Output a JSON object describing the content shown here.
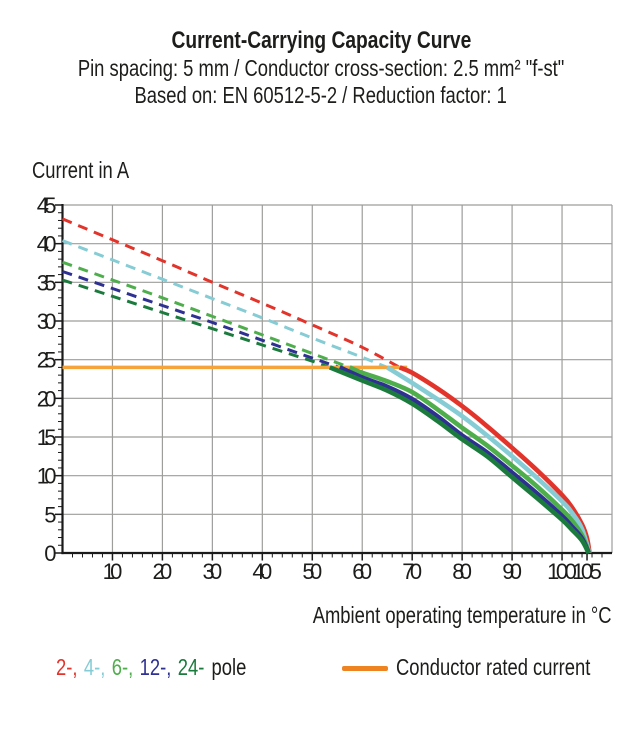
{
  "header": {
    "title": "Current-Carrying Capacity Curve",
    "subtitle1": "Pin spacing: 5 mm / Conductor cross-section: 2.5 mm² \"f-st\"",
    "subtitle2": "Based on: EN 60512-5-2 / Reduction factor: 1"
  },
  "legend": {
    "poles": [
      {
        "text": "2-,",
        "color": "#e2342a"
      },
      {
        "text": "4-,",
        "color": "#85ccd5"
      },
      {
        "text": "6-,",
        "color": "#4fae4c"
      },
      {
        "text": "12-,",
        "color": "#2e3191"
      },
      {
        "text": "24-",
        "color": "#1b7b3d"
      }
    ],
    "suffix": "pole",
    "rated_label": "Conductor rated current",
    "rated_swatch_color": "#ee8322"
  },
  "chart_data": {
    "type": "line",
    "title": "Current-Carrying Capacity Curve",
    "xlabel": "Ambient operating temperature in °C",
    "ylabel": "Current in A",
    "xlim": [
      0,
      110
    ],
    "ylim": [
      0,
      45
    ],
    "grid": true,
    "legend_position": "bottom",
    "x_major_ticks": [
      10,
      20,
      30,
      40,
      50,
      60,
      70,
      80,
      90,
      100,
      105
    ],
    "x_minor_step": 2,
    "y_major_ticks": [
      0,
      5,
      10,
      15,
      20,
      25,
      30,
      35,
      40,
      45
    ],
    "y_minor_step": 1,
    "colors": {
      "grid": "#9d9d9c",
      "axis": "#1a1a1a",
      "text": "#1d1d1b"
    },
    "conductor_rated_current": {
      "label": "Conductor rated current",
      "value": 24,
      "x_start": 0,
      "x_end": 69,
      "color": "#f5a43c"
    },
    "note": "Curves are dashed above the conductor rated current (24 A) and solid below it; all poles derate to 0 A at 105 °C",
    "series": [
      {
        "name": "2-pole",
        "color": "#e2342a",
        "style_above_rated": "dashed",
        "style_below_rated": "solid",
        "dashed": [
          [
            0,
            43.2
          ],
          [
            10,
            40.5
          ],
          [
            20,
            37.8
          ],
          [
            30,
            35.0
          ],
          [
            40,
            32.3
          ],
          [
            50,
            29.5
          ],
          [
            60,
            26.6
          ],
          [
            67.5,
            24
          ]
        ],
        "solid": [
          [
            67.5,
            24
          ],
          [
            70,
            23.3
          ],
          [
            75,
            21.3
          ],
          [
            80,
            19.0
          ],
          [
            85,
            16.4
          ],
          [
            90,
            13.6
          ],
          [
            95,
            10.7
          ],
          [
            100,
            7.5
          ],
          [
            102,
            5.9
          ],
          [
            104,
            3.7
          ],
          [
            105,
            1.9
          ],
          [
            105.5,
            0
          ]
        ]
      },
      {
        "name": "4-pole",
        "color": "#85ccd5",
        "style_above_rated": "dashed",
        "style_below_rated": "solid",
        "dashed": [
          [
            0,
            40.4
          ],
          [
            10,
            37.9
          ],
          [
            20,
            35.4
          ],
          [
            30,
            32.9
          ],
          [
            40,
            30.4
          ],
          [
            50,
            27.8
          ],
          [
            60,
            25.3
          ],
          [
            65,
            24
          ]
        ],
        "solid": [
          [
            65,
            24
          ],
          [
            70,
            22.0
          ],
          [
            75,
            19.9
          ],
          [
            80,
            17.7
          ],
          [
            85,
            15.2
          ],
          [
            90,
            12.5
          ],
          [
            95,
            9.7
          ],
          [
            100,
            6.7
          ],
          [
            102,
            5.2
          ],
          [
            104,
            3.1
          ],
          [
            105.45,
            0
          ]
        ]
      },
      {
        "name": "6-pole",
        "color": "#4fae4c",
        "style_above_rated": "dashed",
        "style_below_rated": "solid",
        "dashed": [
          [
            0,
            37.6
          ],
          [
            10,
            35.3
          ],
          [
            20,
            33.0
          ],
          [
            30,
            30.6
          ],
          [
            40,
            28.2
          ],
          [
            50,
            25.8
          ],
          [
            57.5,
            24
          ]
        ],
        "solid": [
          [
            57.5,
            24
          ],
          [
            60,
            23.3
          ],
          [
            65,
            22.2
          ],
          [
            70,
            20.8
          ],
          [
            75,
            18.6
          ],
          [
            80,
            16.2
          ],
          [
            85,
            13.9
          ],
          [
            90,
            11.3
          ],
          [
            95,
            8.6
          ],
          [
            100,
            5.6
          ],
          [
            102,
            4.2
          ],
          [
            104,
            2.3
          ],
          [
            105.4,
            0
          ]
        ]
      },
      {
        "name": "12-pole",
        "color": "#2e3191",
        "style_above_rated": "dashed",
        "style_below_rated": "solid",
        "dashed": [
          [
            0,
            36.4
          ],
          [
            10,
            34.2
          ],
          [
            20,
            32.0
          ],
          [
            30,
            29.8
          ],
          [
            40,
            27.5
          ],
          [
            50,
            25.2
          ],
          [
            55.5,
            24
          ]
        ],
        "solid": [
          [
            55.5,
            24
          ],
          [
            60,
            22.7
          ],
          [
            65,
            21.5
          ],
          [
            70,
            19.9
          ],
          [
            75,
            17.7
          ],
          [
            80,
            15.2
          ],
          [
            85,
            13.0
          ],
          [
            90,
            10.4
          ],
          [
            95,
            7.7
          ],
          [
            100,
            4.8
          ],
          [
            102,
            3.4
          ],
          [
            104,
            1.9
          ],
          [
            105.35,
            0
          ]
        ]
      },
      {
        "name": "24-pole",
        "color": "#1b7b3d",
        "style_above_rated": "dashed",
        "style_below_rated": "solid",
        "dashed": [
          [
            0,
            35.3
          ],
          [
            10,
            33.2
          ],
          [
            20,
            31.1
          ],
          [
            30,
            29.0
          ],
          [
            40,
            26.9
          ],
          [
            50,
            24.8
          ],
          [
            53.5,
            24
          ]
        ],
        "solid": [
          [
            53.5,
            24
          ],
          [
            60,
            22.3
          ],
          [
            65,
            21.0
          ],
          [
            70,
            19.3
          ],
          [
            75,
            17.1
          ],
          [
            80,
            14.7
          ],
          [
            85,
            12.5
          ],
          [
            90,
            9.8
          ],
          [
            95,
            7.1
          ],
          [
            100,
            4.3
          ],
          [
            102,
            3.0
          ],
          [
            104,
            1.6
          ],
          [
            105.3,
            0
          ]
        ]
      }
    ]
  }
}
